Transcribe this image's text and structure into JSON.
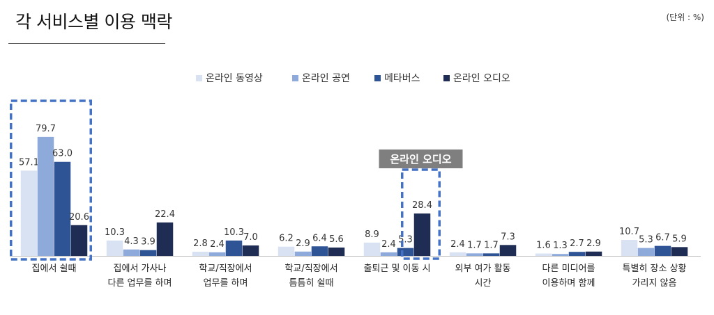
{
  "header": {
    "title": "각 서비스별 이용 맥락",
    "unit": "(단위 : %)"
  },
  "chart_data": {
    "type": "bar",
    "title": "각 서비스별 이용 맥락",
    "unit": "(단위 : %)",
    "categories": [
      [
        "집에서 쉴때"
      ],
      [
        "집에서 가사나",
        "다른 업무를 하며"
      ],
      [
        "학교/직장에서",
        "업무를 하며"
      ],
      [
        "학교/직장에서",
        "틈틈히 쉴때"
      ],
      [
        "출퇴근 및 이동 시"
      ],
      [
        "외부 여가 활동",
        "시간"
      ],
      [
        "다른 미디어를",
        "이용하며 함께"
      ],
      [
        "특별히 장소 상황",
        "가리지 않음"
      ]
    ],
    "series": [
      {
        "name": "온라인 동영상",
        "color": "#d9e2f3",
        "values": [
          57.1,
          10.3,
          2.8,
          6.2,
          8.9,
          2.4,
          1.6,
          10.7
        ]
      },
      {
        "name": "온라인 공연",
        "color": "#8eaadb",
        "values": [
          79.7,
          4.3,
          2.4,
          2.9,
          2.4,
          1.7,
          1.3,
          5.3
        ]
      },
      {
        "name": "메타버스",
        "color": "#2f5496",
        "values": [
          63.0,
          3.9,
          10.3,
          6.4,
          5.3,
          1.7,
          2.7,
          6.7
        ]
      },
      {
        "name": "온라인 오디오",
        "color": "#1f2d54",
        "values": [
          20.6,
          22.4,
          7.0,
          5.6,
          28.4,
          7.3,
          2.9,
          5.9
        ]
      }
    ],
    "ylim": [
      0,
      85
    ],
    "grid": false,
    "legend_position": "top-center",
    "highlights": [
      {
        "category_index": 0,
        "series_index": null,
        "label": ""
      },
      {
        "category_index": 4,
        "series_index": 3,
        "label": "온라인 오디오"
      }
    ],
    "highlight_color": "#4472c4",
    "callout_bg": "#7f7f7f"
  }
}
